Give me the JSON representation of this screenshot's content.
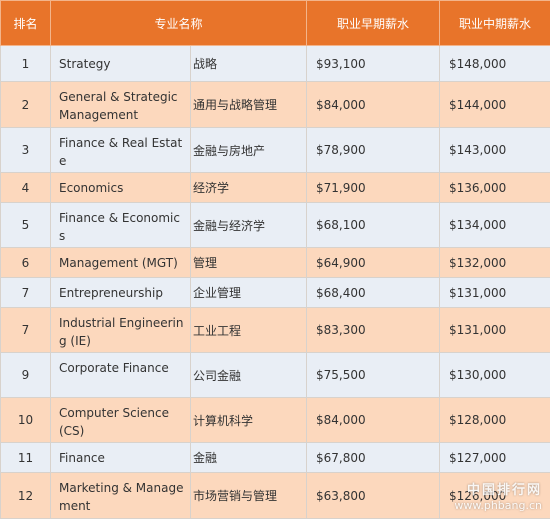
{
  "header": {
    "rank": "排名",
    "major": "专业名称",
    "early_salary": "职业早期薪水",
    "mid_salary": "职业中期薪水"
  },
  "rows": [
    {
      "rank": "1",
      "en": "Strategy",
      "cn": "战略",
      "early": "$93,100",
      "mid": "$148,000"
    },
    {
      "rank": "2",
      "en": "General & Strategic Management",
      "cn": "通用与战略管理",
      "early": "$84,000",
      "mid": "$144,000"
    },
    {
      "rank": "3",
      "en": "Finance & Real Estate",
      "cn": "金融与房地产",
      "early": "$78,900",
      "mid": "$143,000"
    },
    {
      "rank": "4",
      "en": "Economics",
      "cn": "经济学",
      "early": "$71,900",
      "mid": "$136,000"
    },
    {
      "rank": "5",
      "en": "Finance & Economics",
      "cn": "金融与经济学",
      "early": "$68,100",
      "mid": "$134,000"
    },
    {
      "rank": "6",
      "en": "Management (MGT)",
      "cn": "管理",
      "early": "$64,900",
      "mid": "$132,000"
    },
    {
      "rank": "7",
      "en": "Entrepreneurship",
      "cn": "企业管理",
      "early": "$68,400",
      "mid": "$131,000"
    },
    {
      "rank": "7",
      "en": "Industrial Engineering (IE)",
      "cn": "工业工程",
      "early": "$83,300",
      "mid": "$131,000"
    },
    {
      "rank": "9",
      "en": "Corporate Finance",
      "cn": "公司金融",
      "early": "$75,500",
      "mid": "$130,000"
    },
    {
      "rank": "10",
      "en": "Computer Science (CS)",
      "cn": "计算机科学",
      "early": "$84,000",
      "mid": "$128,000"
    },
    {
      "rank": "11",
      "en": "Finance",
      "cn": "金融",
      "early": "$67,800",
      "mid": "$127,000"
    },
    {
      "rank": "12",
      "en": "Marketing & Management",
      "cn": "市场营销与管理",
      "early": "$63,800",
      "mid": "$126,000"
    }
  ],
  "watermark": {
    "cn": "中国排行网",
    "en": "www.phbang.cn"
  }
}
